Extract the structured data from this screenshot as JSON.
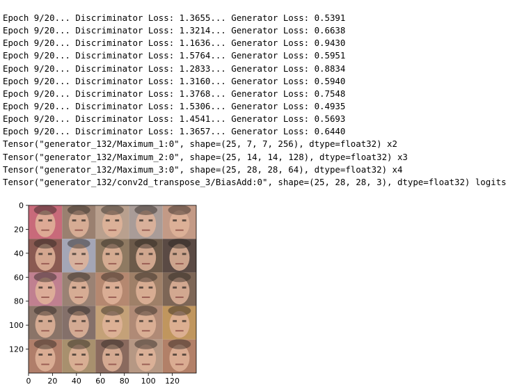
{
  "output": {
    "lines": [
      "Epoch 9/20... Discriminator Loss: 1.3655... Generator Loss: 0.5391",
      "Epoch 9/20... Discriminator Loss: 1.3214... Generator Loss: 0.6638",
      "Epoch 9/20... Discriminator Loss: 1.1636... Generator Loss: 0.9430",
      "Epoch 9/20... Discriminator Loss: 1.5764... Generator Loss: 0.5951",
      "Epoch 9/20... Discriminator Loss: 1.2833... Generator Loss: 0.8834",
      "Epoch 9/20... Discriminator Loss: 1.3160... Generator Loss: 0.5940",
      "Epoch 9/20... Discriminator Loss: 1.3768... Generator Loss: 0.7548",
      "Epoch 9/20... Discriminator Loss: 1.5306... Generator Loss: 0.4935",
      "Epoch 9/20... Discriminator Loss: 1.4541... Generator Loss: 0.5693",
      "Epoch 9/20... Discriminator Loss: 1.3657... Generator Loss: 0.6440",
      "Tensor(\"generator_132/Maximum_1:0\", shape=(25, 7, 7, 256), dtype=float32) x2",
      "Tensor(\"generator_132/Maximum_2:0\", shape=(25, 14, 14, 128), dtype=float32) x3",
      "Tensor(\"generator_132/Maximum_3:0\", shape=(25, 28, 28, 64), dtype=float32) x4",
      "Tensor(\"generator_132/conv2d_transpose_3/BiasAdd:0\", shape=(25, 28, 28, 3), dtype=float32) logits"
    ]
  },
  "chart_data": {
    "type": "image-grid",
    "grid": {
      "rows": 5,
      "cols": 5
    },
    "xlim": [
      0,
      140
    ],
    "ylim": [
      140,
      0
    ],
    "x_ticks": [
      0,
      20,
      40,
      60,
      80,
      100,
      120
    ],
    "y_ticks": [
      0,
      20,
      40,
      60,
      80,
      100,
      120
    ],
    "tile_colors": [
      [
        "#c86a7a",
        "#9a8070",
        "#b9a08e",
        "#a99c98",
        "#c39a86"
      ],
      [
        "#8a5a52",
        "#a4a6b6",
        "#8f7a62",
        "#6c5a4a",
        "#5a4a44"
      ],
      [
        "#c08090",
        "#9a8274",
        "#b58870",
        "#9f8068",
        "#7d6656"
      ],
      [
        "#8a7468",
        "#84706a",
        "#c4a178",
        "#b08a76",
        "#c0965e"
      ],
      [
        "#b07e6a",
        "#a8906e",
        "#8a6a5e",
        "#b69884",
        "#b28068"
      ]
    ],
    "skin_color": "#e0b49a",
    "dark_color": "#2a2420"
  }
}
